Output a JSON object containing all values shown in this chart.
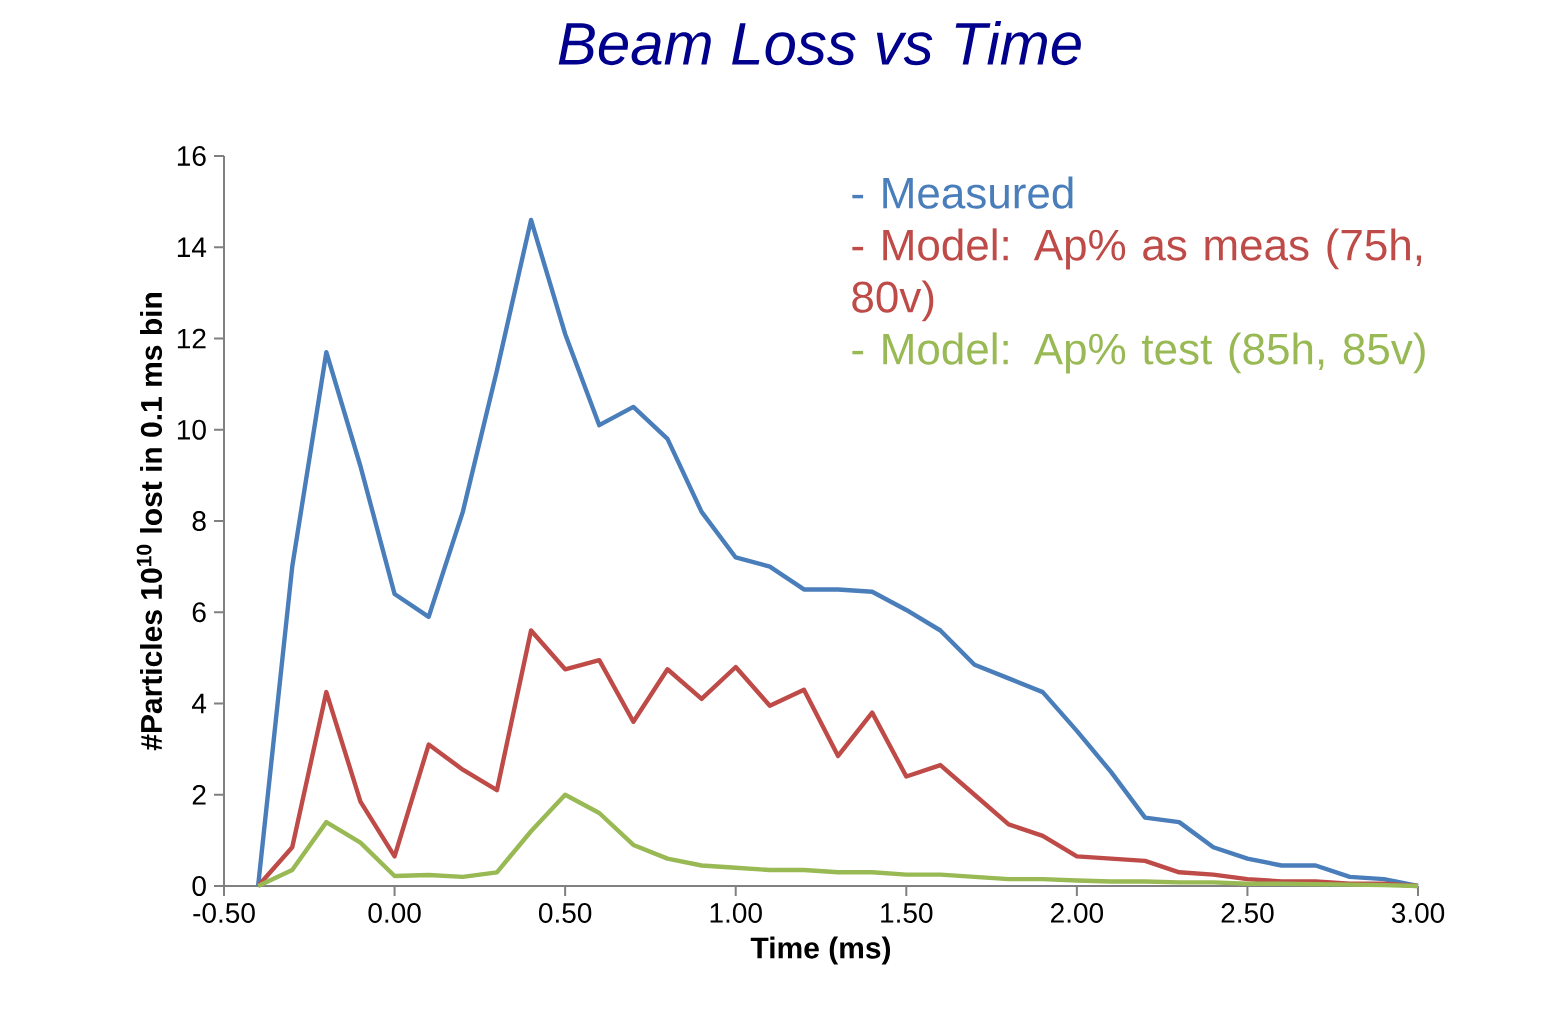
{
  "chart_data": {
    "type": "line",
    "title": "Beam Loss vs Time",
    "xlabel": "Time (ms)",
    "ylabel": "#Particles 10$^{10}$ lost in 0.1 ms bin",
    "x": [
      -0.4,
      -0.3,
      -0.2,
      -0.1,
      0.0,
      0.1,
      0.2,
      0.3,
      0.4,
      0.5,
      0.6,
      0.7,
      0.8,
      0.9,
      1.0,
      1.1,
      1.2,
      1.3,
      1.4,
      1.5,
      1.6,
      1.7,
      1.8,
      1.9,
      2.0,
      2.1,
      2.2,
      2.3,
      2.4,
      2.5,
      2.6,
      2.7,
      2.8,
      2.9,
      3.0
    ],
    "series": [
      {
        "name": "- Measured",
        "color": "#4a7ebb",
        "values": [
          0,
          7.0,
          11.7,
          9.2,
          6.4,
          5.9,
          8.2,
          11.3,
          14.6,
          12.1,
          10.1,
          10.5,
          9.8,
          8.2,
          7.2,
          7.0,
          6.5,
          6.5,
          6.45,
          6.05,
          5.6,
          4.85,
          4.55,
          4.25,
          3.4,
          2.5,
          1.5,
          1.4,
          0.85,
          0.6,
          0.45,
          0.45,
          0.2,
          0.15,
          0
        ]
      },
      {
        "name": "- Model: Ap% as meas (75h, 80v)",
        "color": "#be4b48",
        "values": [
          0,
          0.85,
          4.25,
          1.85,
          0.65,
          3.1,
          2.55,
          2.1,
          5.6,
          4.75,
          4.95,
          3.6,
          4.75,
          4.1,
          4.8,
          3.95,
          4.3,
          2.85,
          3.8,
          2.4,
          2.65,
          2.0,
          1.35,
          1.1,
          0.65,
          0.6,
          0.55,
          0.3,
          0.25,
          0.15,
          0.1,
          0.1,
          0.05,
          0.05,
          0
        ]
      },
      {
        "name": "- Model: Ap% test (85h, 85v)",
        "color": "#98b954",
        "values": [
          0,
          0.35,
          1.4,
          0.95,
          0.22,
          0.24,
          0.2,
          0.3,
          1.2,
          2.0,
          1.6,
          0.9,
          0.6,
          0.45,
          0.4,
          0.35,
          0.35,
          0.3,
          0.3,
          0.25,
          0.25,
          0.2,
          0.15,
          0.15,
          0.12,
          0.1,
          0.1,
          0.08,
          0.08,
          0.05,
          0.05,
          0.04,
          0.03,
          0.02,
          0
        ]
      }
    ],
    "xlim": [
      -0.5,
      3.0
    ],
    "xticks": [
      {
        "value": -0.5,
        "label": "-0.50"
      },
      {
        "value": 0.0,
        "label": "0.00"
      },
      {
        "value": 0.5,
        "label": "0.50"
      },
      {
        "value": 1.0,
        "label": "1.00"
      },
      {
        "value": 1.5,
        "label": "1.50"
      },
      {
        "value": 2.0,
        "label": "2.00"
      },
      {
        "value": 2.5,
        "label": "2.50"
      },
      {
        "value": 3.0,
        "label": "3.00"
      }
    ],
    "ylim": [
      0,
      16
    ],
    "yticks": [
      0,
      2,
      4,
      6,
      8,
      10,
      12,
      14,
      16
    ],
    "grid": false,
    "legend": "top right",
    "marker": "none",
    "line_style": "solid"
  }
}
